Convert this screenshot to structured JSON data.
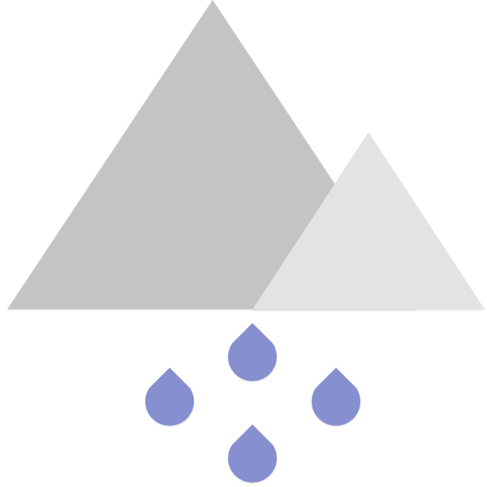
{
  "illustration": {
    "icons": [
      "large-mountain-icon",
      "small-mountain-icon",
      "raindrop-icon"
    ],
    "colors": {
      "large_mountain": "#c4c4c3",
      "small_mountain": "#e3e3e3",
      "raindrop": "#8690d0",
      "background": "#ffffff"
    }
  }
}
